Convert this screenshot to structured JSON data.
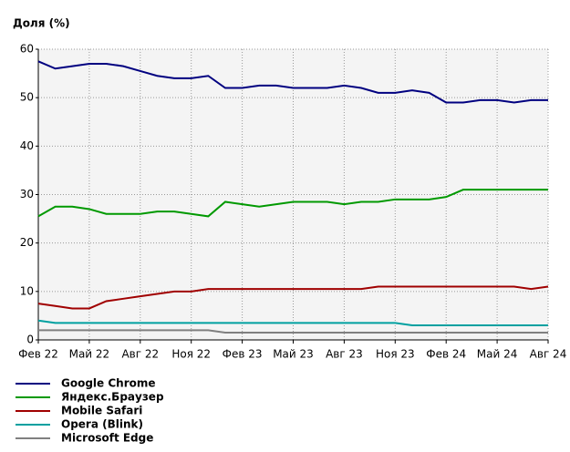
{
  "chart_data": {
    "type": "line",
    "y_label": "Доля (%)",
    "categories": [
      "Фев 22",
      null,
      null,
      "Май 22",
      null,
      null,
      "Авг 22",
      null,
      null,
      "Ноя 22",
      null,
      null,
      "Фев 23",
      null,
      null,
      "Май 23",
      null,
      null,
      "Авг 23",
      null,
      null,
      "Ноя 23",
      null,
      null,
      "Фев 24",
      null,
      null,
      "Май 24",
      null,
      null,
      "Авг 24"
    ],
    "ylim": [
      0,
      60
    ],
    "yticks": [
      0,
      10,
      20,
      30,
      40,
      50,
      60
    ],
    "grid": true,
    "legend": "bottom",
    "series": [
      {
        "name": "Google Chrome",
        "color": "#000080",
        "values": [
          57.5,
          56,
          56.5,
          57,
          57,
          56.5,
          55.5,
          54.5,
          54,
          54,
          54.5,
          52,
          52,
          52.5,
          52.5,
          52,
          52,
          52,
          52.5,
          52,
          51,
          51,
          51.5,
          51,
          49,
          49,
          49.5,
          49.5,
          49,
          49.5,
          49.5
        ]
      },
      {
        "name": "Яндекс.Браузер",
        "color": "#009900",
        "values": [
          25.5,
          27.5,
          27.5,
          27,
          26,
          26,
          26,
          26.5,
          26.5,
          26,
          25.5,
          28.5,
          28,
          27.5,
          28,
          28.5,
          28.5,
          28.5,
          28,
          28.5,
          28.5,
          29,
          29,
          29,
          29.5,
          31,
          31,
          31,
          31,
          31,
          31
        ]
      },
      {
        "name": "Mobile Safari",
        "color": "#a00000",
        "values": [
          7.5,
          7,
          6.5,
          6.5,
          8,
          8.5,
          9,
          9.5,
          10,
          10,
          10.5,
          10.5,
          10.5,
          10.5,
          10.5,
          10.5,
          10.5,
          10.5,
          10.5,
          10.5,
          11,
          11,
          11,
          11,
          11,
          11,
          11,
          11,
          11,
          10.5,
          11
        ]
      },
      {
        "name": "Opera (Blink)",
        "color": "#00a0a0",
        "values": [
          4,
          3.5,
          3.5,
          3.5,
          3.5,
          3.5,
          3.5,
          3.5,
          3.5,
          3.5,
          3.5,
          3.5,
          3.5,
          3.5,
          3.5,
          3.5,
          3.5,
          3.5,
          3.5,
          3.5,
          3.5,
          3.5,
          3,
          3,
          3,
          3,
          3,
          3,
          3,
          3,
          3
        ]
      },
      {
        "name": "Microsoft Edge",
        "color": "#808080",
        "values": [
          2,
          2,
          2,
          2,
          2,
          2,
          2,
          2,
          2,
          2,
          2,
          1.5,
          1.5,
          1.5,
          1.5,
          1.5,
          1.5,
          1.5,
          1.5,
          1.5,
          1.5,
          1.5,
          1.5,
          1.5,
          1.5,
          1.5,
          1.5,
          1.5,
          1.5,
          1.5,
          1.5
        ]
      }
    ]
  }
}
